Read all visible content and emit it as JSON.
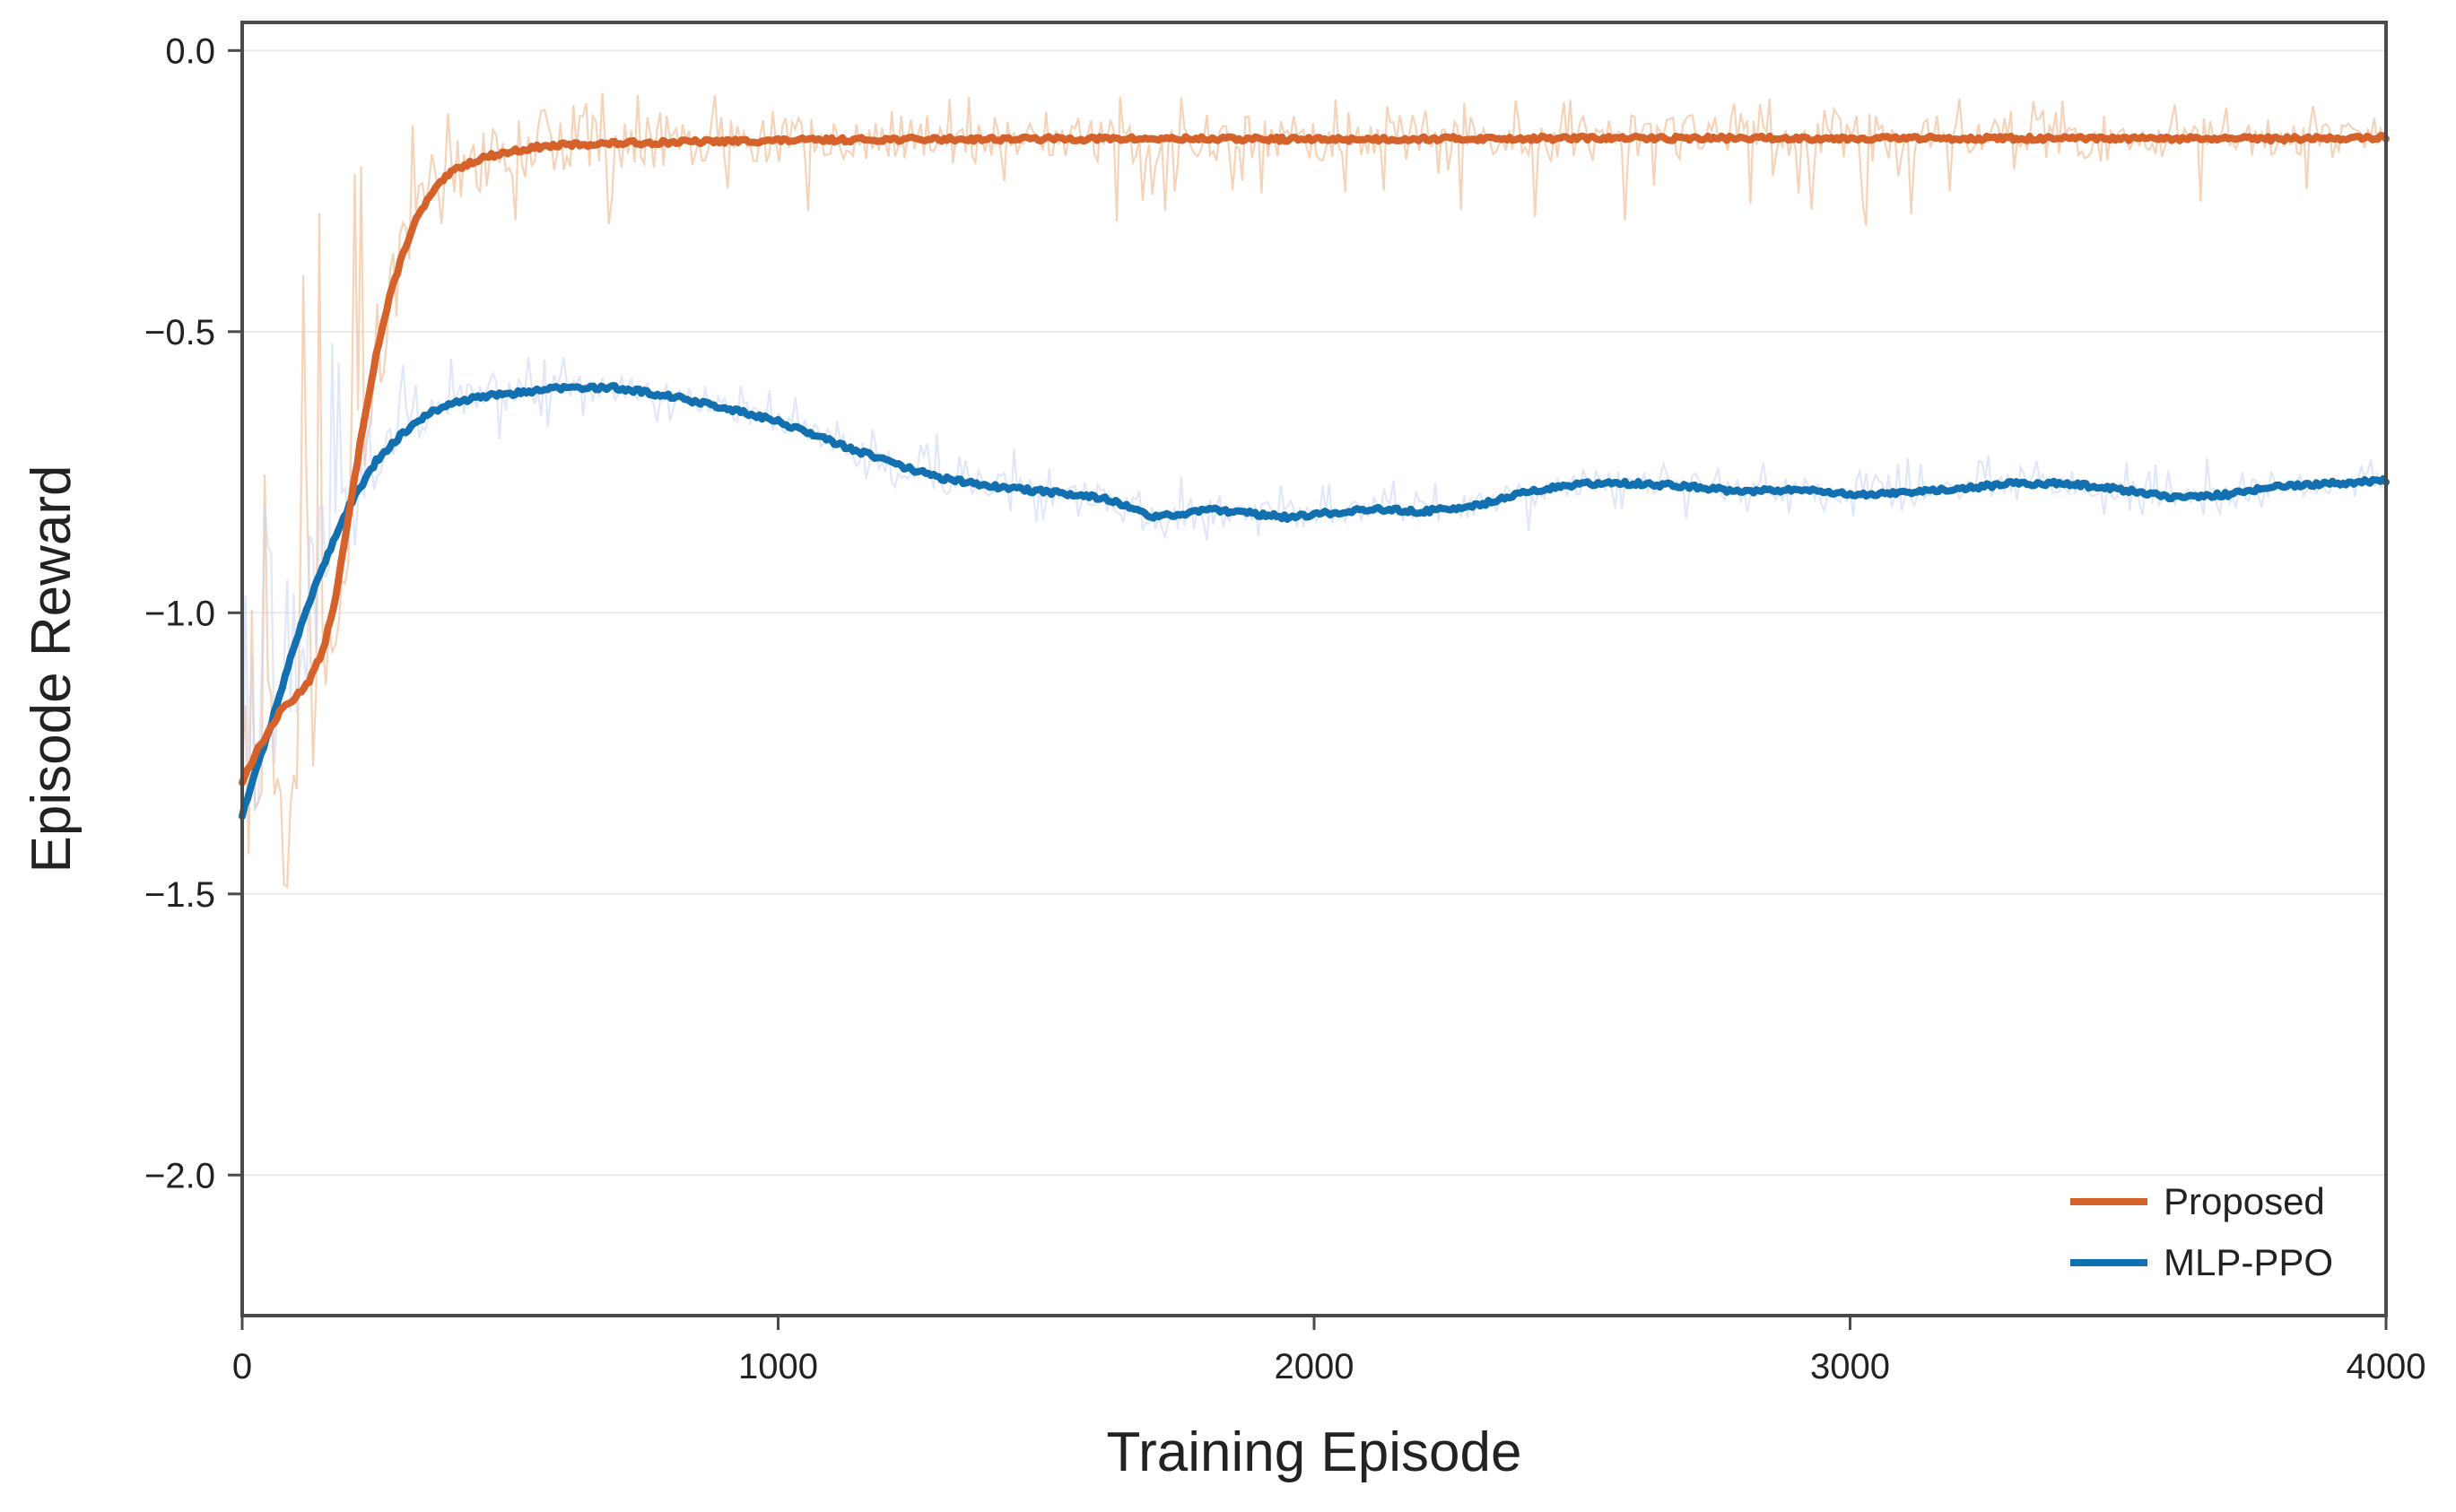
{
  "chart_data": {
    "type": "line",
    "title": "",
    "xlabel": "Training Episode",
    "ylabel": "Episode Reward",
    "xlim": [
      0,
      4000
    ],
    "ylim": [
      -2.25,
      0.05
    ],
    "xticks": [
      0,
      1000,
      2000,
      3000,
      4000
    ],
    "xtick_labels": [
      "0",
      "1000",
      "2000",
      "3000",
      "4000"
    ],
    "yticks": [
      0.0,
      -0.5,
      -1.0,
      -1.5,
      -2.0
    ],
    "ytick_labels": [
      "0.0",
      "−0.5",
      "−1.0",
      "−1.5",
      "−2.0"
    ],
    "grid": "horizontal",
    "legend_position": "lower-right",
    "series": [
      {
        "name": "Proposed",
        "color": "#D4622A",
        "raw_color": "#F2C4A2",
        "smoothed": {
          "x": [
            0,
            25,
            50,
            75,
            100,
            125,
            150,
            175,
            200,
            225,
            250,
            275,
            300,
            325,
            350,
            375,
            400,
            450,
            500,
            550,
            600,
            700,
            800,
            1000,
            1200,
            1500,
            1800,
            2000,
            2200,
            2500,
            2800,
            3000,
            3200,
            3500,
            3800,
            4000
          ],
          "y": [
            -1.3,
            -1.25,
            -1.21,
            -1.17,
            -1.15,
            -1.12,
            -1.07,
            -0.97,
            -0.82,
            -0.67,
            -0.54,
            -0.44,
            -0.36,
            -0.3,
            -0.26,
            -0.23,
            -0.21,
            -0.19,
            -0.18,
            -0.172,
            -0.168,
            -0.165,
            -0.163,
            -0.16,
            -0.158,
            -0.157,
            -0.157,
            -0.158,
            -0.157,
            -0.156,
            -0.156,
            -0.156,
            -0.156,
            -0.157,
            -0.157,
            -0.155
          ]
        },
        "raw_band": {
          "x": [
            0,
            100,
            200,
            300,
            500,
            1000,
            2000,
            3000,
            4000
          ],
          "low": [
            -1.45,
            -1.5,
            -0.9,
            -0.42,
            -0.38,
            -0.32,
            -0.32,
            -0.32,
            -0.25
          ],
          "high": [
            -0.85,
            -0.2,
            -0.12,
            -0.07,
            -0.07,
            -0.08,
            -0.08,
            -0.08,
            -0.1
          ]
        }
      },
      {
        "name": "MLP-PPO",
        "color": "#1270B0",
        "raw_color": "#C9D4F2",
        "smoothed": {
          "x": [
            0,
            25,
            50,
            75,
            100,
            125,
            150,
            175,
            200,
            250,
            300,
            350,
            400,
            450,
            500,
            600,
            700,
            800,
            900,
            1000,
            1100,
            1200,
            1300,
            1400,
            1500,
            1600,
            1650,
            1700,
            1750,
            1800,
            1900,
            1950,
            2000,
            2100,
            2200,
            2300,
            2400,
            2500,
            2600,
            2700,
            2800,
            2900,
            3000,
            3100,
            3200,
            3300,
            3400,
            3500,
            3600,
            3700,
            3800,
            3900,
            4000
          ],
          "y": [
            -1.36,
            -1.28,
            -1.21,
            -1.13,
            -1.05,
            -0.98,
            -0.92,
            -0.86,
            -0.81,
            -0.73,
            -0.68,
            -0.645,
            -0.625,
            -0.615,
            -0.61,
            -0.6,
            -0.6,
            -0.615,
            -0.635,
            -0.66,
            -0.695,
            -0.73,
            -0.76,
            -0.775,
            -0.785,
            -0.795,
            -0.81,
            -0.83,
            -0.825,
            -0.815,
            -0.825,
            -0.83,
            -0.825,
            -0.815,
            -0.82,
            -0.81,
            -0.785,
            -0.77,
            -0.77,
            -0.775,
            -0.785,
            -0.78,
            -0.79,
            -0.785,
            -0.78,
            -0.77,
            -0.77,
            -0.78,
            -0.795,
            -0.79,
            -0.775,
            -0.77,
            -0.765
          ]
        },
        "raw_band": {
          "x": [
            0,
            100,
            200,
            300,
            600,
            1000,
            1500,
            2000,
            3000,
            4000
          ],
          "low": [
            -1.4,
            -1.2,
            -0.9,
            -0.72,
            -0.68,
            -0.72,
            -0.86,
            -0.88,
            -0.84,
            -0.82
          ],
          "high": [
            -0.9,
            -0.2,
            -0.55,
            -0.53,
            -0.54,
            -0.6,
            -0.72,
            -0.76,
            -0.72,
            -0.72
          ]
        }
      }
    ]
  }
}
